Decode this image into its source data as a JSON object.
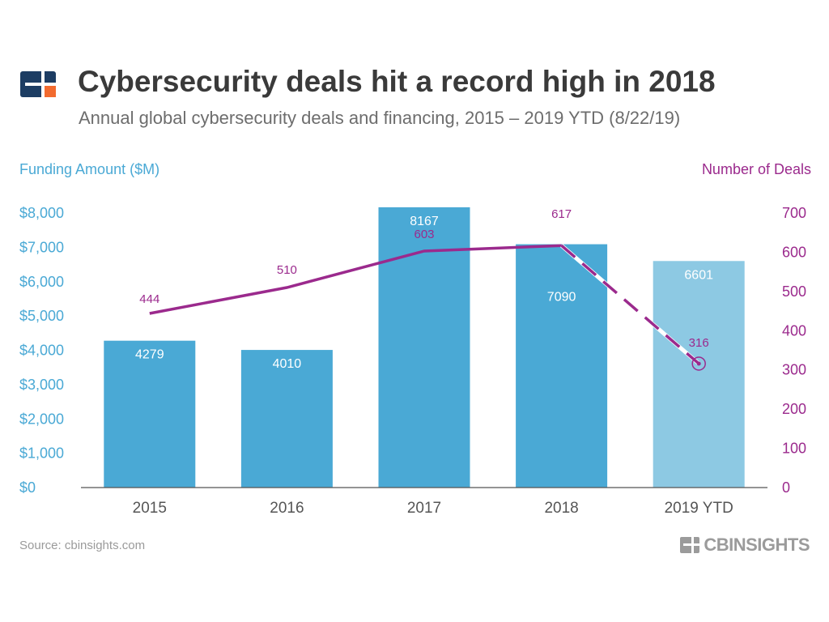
{
  "header": {
    "title": "Cybersecurity deals hit a record high in 2018",
    "subtitle": "Annual global cybersecurity deals and financing, 2015 – 2019 YTD (8/22/19)"
  },
  "footer": {
    "source": "Source: cbinsights.com",
    "brand": "CBINSIGHTS"
  },
  "colors": {
    "bar": "#4aa9d5",
    "bar_ytd": "#8dc9e3",
    "line": "#9b2a8d",
    "axis_left": "#4aa9d5",
    "axis_right": "#9b2a8d",
    "logo_navy": "#1d3d63",
    "logo_orange": "#f26b2f"
  },
  "chart_data": {
    "type": "bar",
    "title": "Cybersecurity deals hit a record high in 2018",
    "subtitle": "Annual global cybersecurity deals and financing, 2015 – 2019 YTD (8/22/19)",
    "categories": [
      "2015",
      "2016",
      "2017",
      "2018",
      "2019 YTD"
    ],
    "ylabel": "Funding Amount ($M)",
    "y2label": "Number of Deals",
    "ylim": [
      0,
      8000
    ],
    "y2lim": [
      0,
      700
    ],
    "yticks": [
      "$0",
      "$1,000",
      "$2,000",
      "$3,000",
      "$4,000",
      "$5,000",
      "$6,000",
      "$7,000",
      "$8,000"
    ],
    "y2ticks": [
      "0",
      "100",
      "200",
      "300",
      "400",
      "500",
      "600",
      "700"
    ],
    "series": [
      {
        "name": "Funding Amount ($M)",
        "type": "bar",
        "axis": "left",
        "values": [
          4279,
          4010,
          8167,
          7090,
          6601
        ]
      },
      {
        "name": "Number of Deals",
        "type": "line",
        "axis": "right",
        "values": [
          444,
          510,
          603,
          617,
          316
        ]
      }
    ],
    "annotations": {
      "ytd_category": "2019 YTD",
      "ytd_bar_lighter": true,
      "ytd_line_dashed": true,
      "ytd_point_marker": "circle"
    },
    "grid": false,
    "legend": "none"
  }
}
